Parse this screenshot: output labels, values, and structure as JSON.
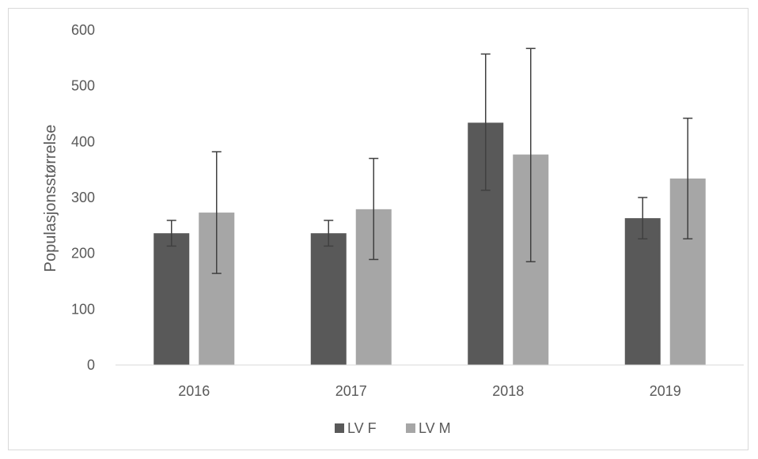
{
  "chart_data": {
    "type": "bar",
    "title": "",
    "xlabel": "",
    "ylabel": "Populasjonsstørrelse",
    "ylim": [
      0,
      600
    ],
    "yticks": [
      0,
      100,
      200,
      300,
      400,
      500,
      600
    ],
    "categories": [
      "2016",
      "2017",
      "2018",
      "2019"
    ],
    "series": [
      {
        "name": "LV F",
        "color": "#595959",
        "values": [
          236,
          236,
          434,
          263
        ],
        "error_low": [
          213,
          213,
          313,
          226
        ],
        "error_high": [
          259,
          259,
          557,
          300
        ]
      },
      {
        "name": "LV M",
        "color": "#a6a6a6",
        "values": [
          273,
          279,
          377,
          334
        ],
        "error_low": [
          164,
          189,
          185,
          226
        ],
        "error_high": [
          382,
          370,
          567,
          442
        ]
      }
    ],
    "grid": false,
    "legend": "bottom-center"
  },
  "colors": {
    "axis": "#d9d9d9",
    "error_bar": "#404040",
    "text": "#595959"
  }
}
